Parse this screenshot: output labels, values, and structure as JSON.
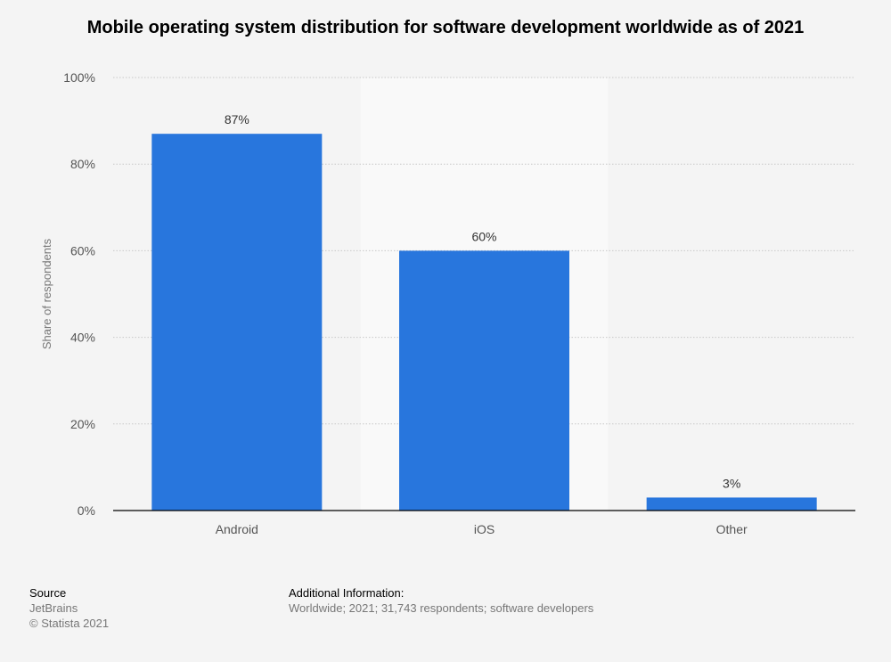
{
  "chart_data": {
    "type": "bar",
    "title": "Mobile operating system distribution for software development worldwide as of 2021",
    "categories": [
      "Android",
      "iOS",
      "Other"
    ],
    "values": [
      87,
      60,
      3
    ],
    "value_labels": [
      "87%",
      "60%",
      "3%"
    ],
    "xlabel": "",
    "ylabel": "Share of respondents",
    "ylim": [
      0,
      100
    ],
    "yticks": [
      0,
      20,
      40,
      60,
      80,
      100
    ],
    "ytick_labels": [
      "0%",
      "20%",
      "40%",
      "60%",
      "80%",
      "100%"
    ],
    "grid": true,
    "legend": "none",
    "highlighted_category": "iOS",
    "bar_color": "#2876dd",
    "highlight_color": "#f9f9f9"
  },
  "footer": {
    "source_heading": "Source",
    "source_lines": [
      "JetBrains",
      "© Statista 2021"
    ],
    "info_heading": "Additional Information:",
    "info_lines": [
      "Worldwide; 2021; 31,743 respondents; software developers"
    ]
  }
}
